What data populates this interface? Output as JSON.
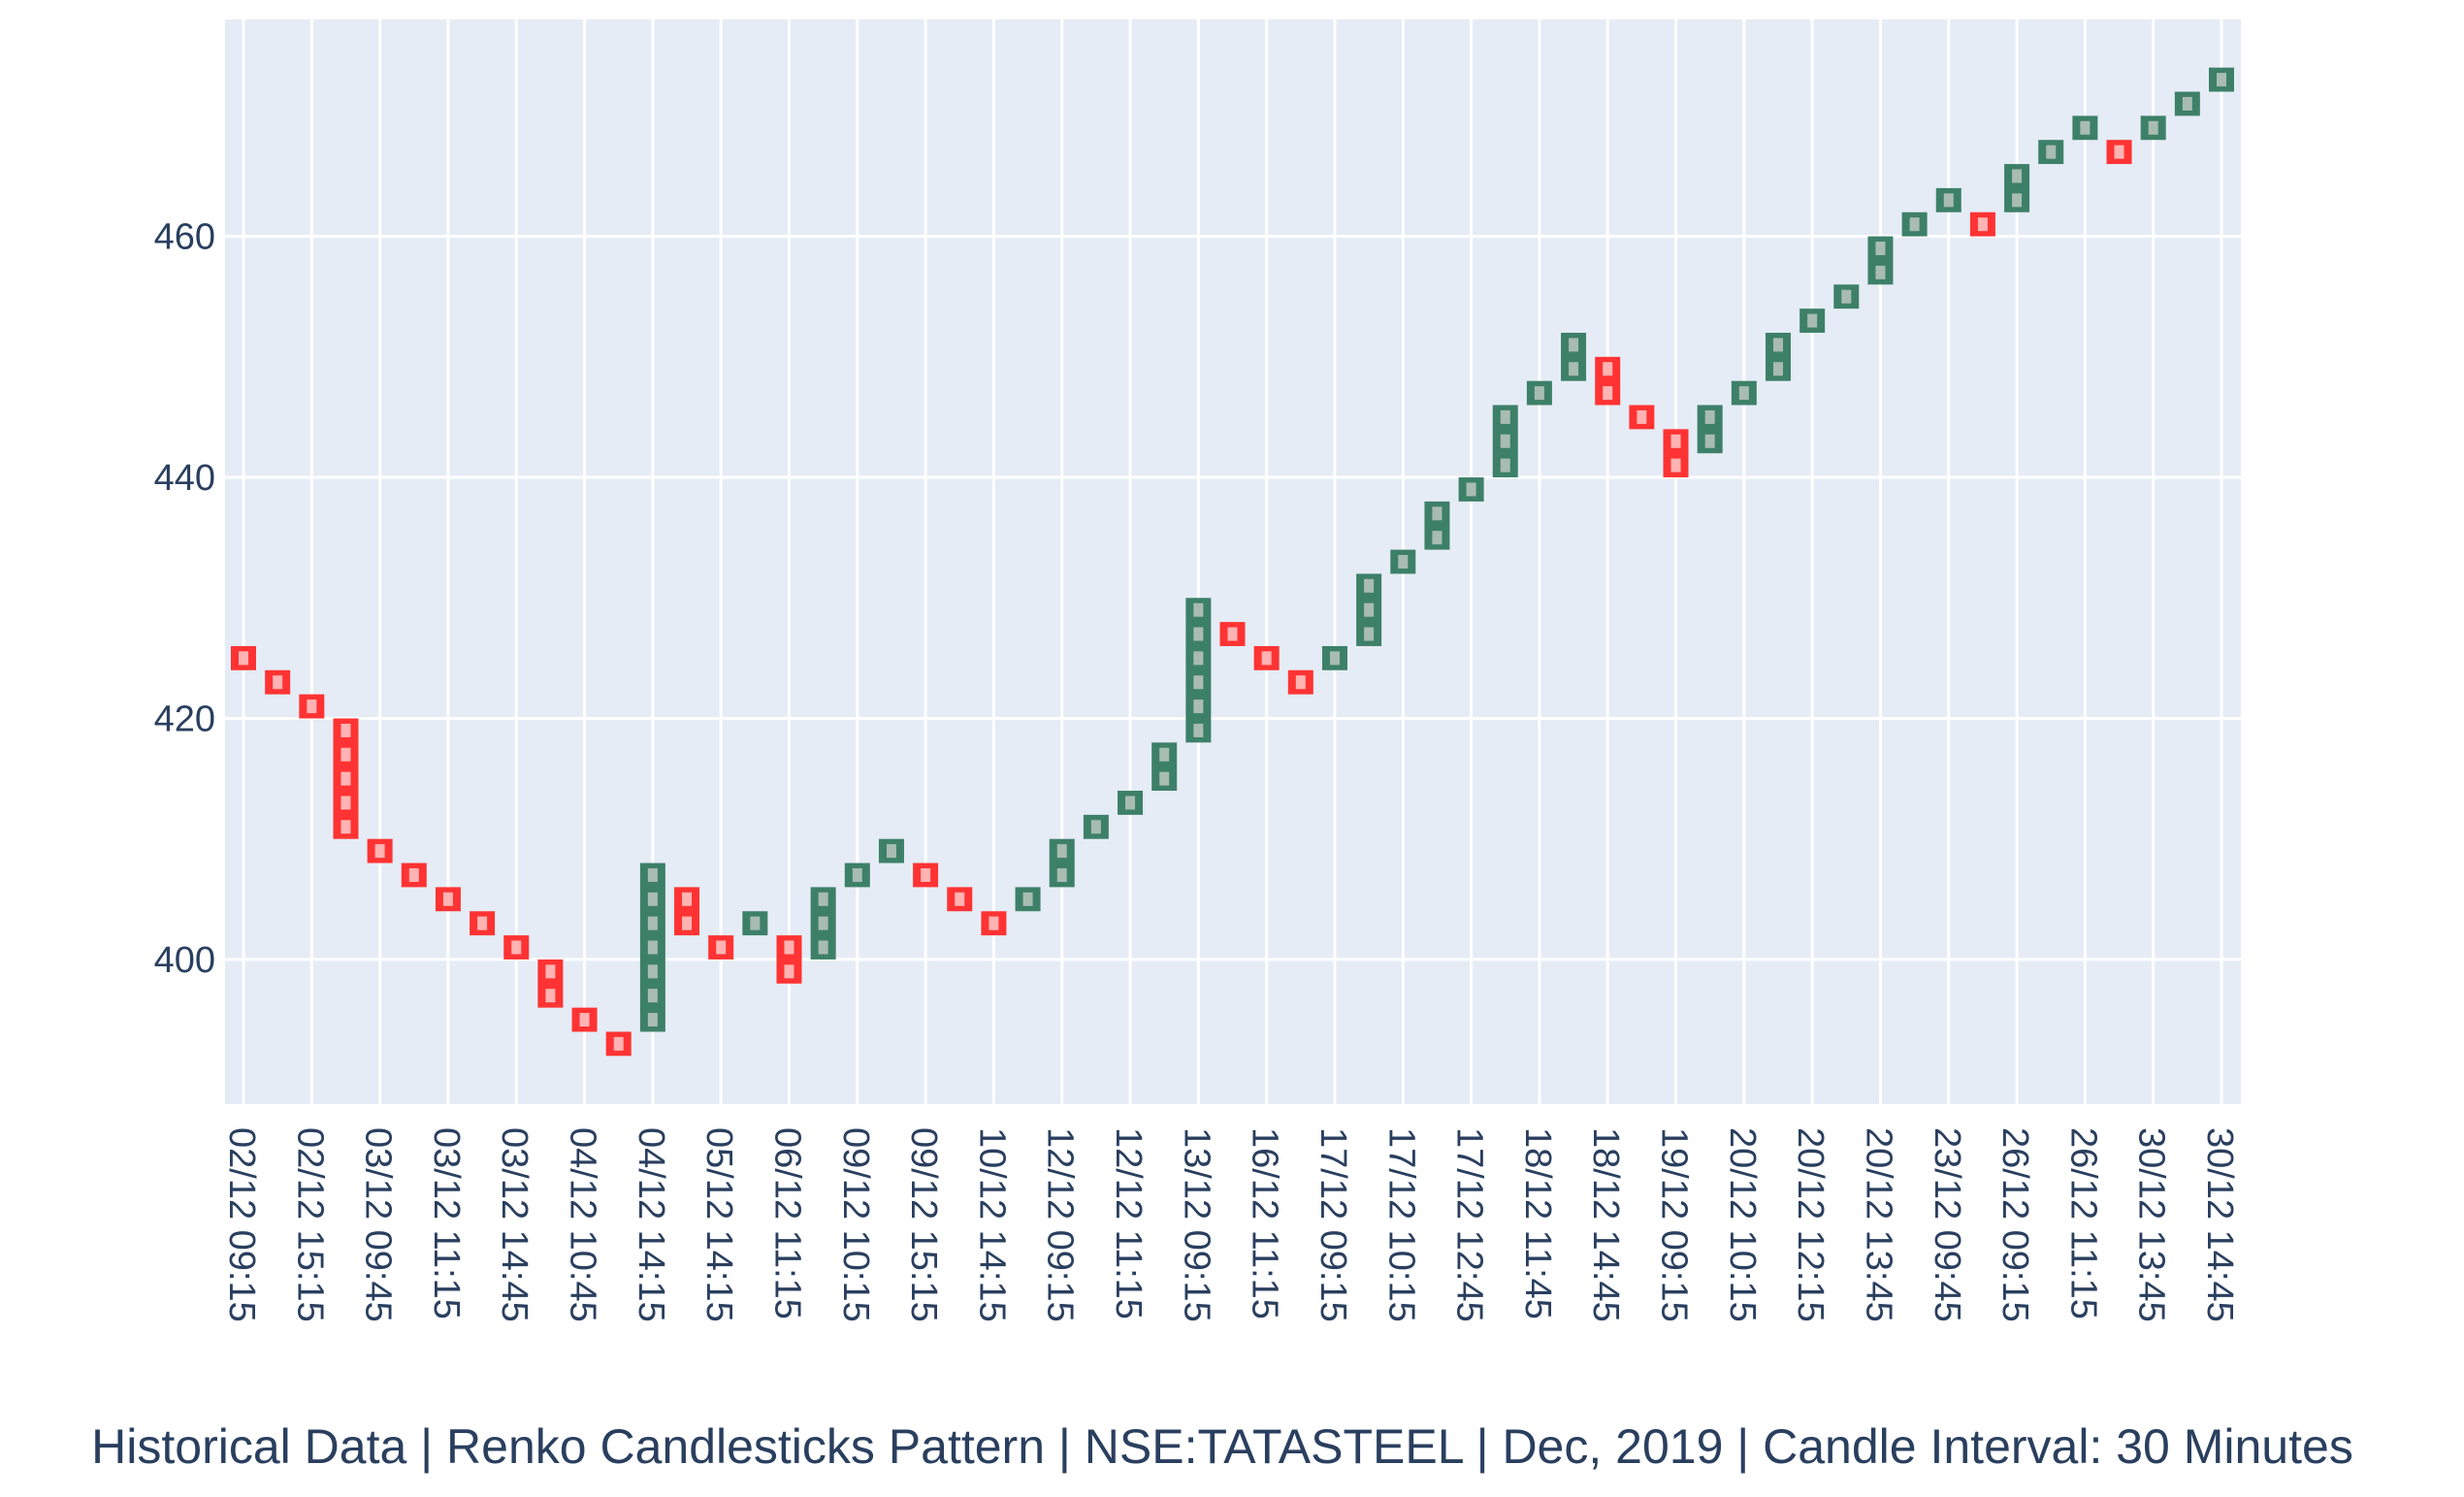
{
  "caption": "Historical Data | Renko Candlesticks Pattern | NSE:TATASTEEL | Dec, 2019 | Candle Interval: 30 Minutes",
  "chart_data": {
    "type": "renko",
    "brick_size": 2,
    "ylim": [
      388,
      478
    ],
    "yticks": [
      400,
      420,
      440,
      460
    ],
    "grid": true,
    "colors": {
      "up": "#3d8068",
      "down": "#ff3333",
      "plot_bg": "#e5ecf6",
      "grid": "#ffffff",
      "text": "#2a3f5f"
    },
    "xtick_labels": [
      "02/12 09:15",
      "02/12 15:15",
      "03/12 09:45",
      "03/12 11:15",
      "03/12 14:45",
      "04/12 10:45",
      "04/12 14:15",
      "05/12 14:15",
      "06/12 11:15",
      "09/12 10:15",
      "09/12 15:15",
      "10/12 14:15",
      "12/12 09:15",
      "12/12 11:15",
      "13/12 09:15",
      "16/12 11:15",
      "17/12 09:15",
      "17/12 10:15",
      "17/12 12:45",
      "18/12 11:45",
      "18/12 14:45",
      "19/12 09:15",
      "20/12 10:15",
      "20/12 12:15",
      "20/12 13:45",
      "23/12 09:45",
      "26/12 09:15",
      "26/12 11:15",
      "30/12 13:45",
      "30/12 14:45"
    ],
    "candles": [
      {
        "open": 426,
        "close": 424
      },
      {
        "open": 424,
        "close": 422
      },
      {
        "open": 422,
        "close": 420
      },
      {
        "open": 420,
        "close": 410
      },
      {
        "open": 410,
        "close": 408
      },
      {
        "open": 408,
        "close": 406
      },
      {
        "open": 406,
        "close": 404
      },
      {
        "open": 404,
        "close": 402
      },
      {
        "open": 402,
        "close": 400
      },
      {
        "open": 400,
        "close": 396
      },
      {
        "open": 396,
        "close": 394
      },
      {
        "open": 394,
        "close": 392
      },
      {
        "open": 394,
        "close": 408
      },
      {
        "open": 406,
        "close": 402
      },
      {
        "open": 402,
        "close": 400
      },
      {
        "open": 402,
        "close": 404
      },
      {
        "open": 402,
        "close": 398
      },
      {
        "open": 400,
        "close": 406
      },
      {
        "open": 406,
        "close": 408
      },
      {
        "open": 408,
        "close": 410
      },
      {
        "open": 408,
        "close": 406
      },
      {
        "open": 406,
        "close": 404
      },
      {
        "open": 404,
        "close": 402
      },
      {
        "open": 404,
        "close": 406
      },
      {
        "open": 406,
        "close": 410
      },
      {
        "open": 410,
        "close": 412
      },
      {
        "open": 412,
        "close": 414
      },
      {
        "open": 414,
        "close": 418
      },
      {
        "open": 418,
        "close": 430
      },
      {
        "open": 428,
        "close": 426
      },
      {
        "open": 426,
        "close": 424
      },
      {
        "open": 424,
        "close": 422
      },
      {
        "open": 424,
        "close": 426
      },
      {
        "open": 426,
        "close": 432
      },
      {
        "open": 432,
        "close": 434
      },
      {
        "open": 434,
        "close": 438
      },
      {
        "open": 438,
        "close": 440
      },
      {
        "open": 440,
        "close": 446
      },
      {
        "open": 446,
        "close": 448
      },
      {
        "open": 448,
        "close": 452
      },
      {
        "open": 450,
        "close": 446
      },
      {
        "open": 446,
        "close": 444
      },
      {
        "open": 444,
        "close": 440
      },
      {
        "open": 442,
        "close": 446
      },
      {
        "open": 446,
        "close": 448
      },
      {
        "open": 448,
        "close": 452
      },
      {
        "open": 452,
        "close": 454
      },
      {
        "open": 454,
        "close": 456
      },
      {
        "open": 456,
        "close": 460
      },
      {
        "open": 460,
        "close": 462
      },
      {
        "open": 462,
        "close": 464
      },
      {
        "open": 462,
        "close": 460
      },
      {
        "open": 462,
        "close": 466
      },
      {
        "open": 466,
        "close": 468
      },
      {
        "open": 468,
        "close": 470
      },
      {
        "open": 468,
        "close": 466
      },
      {
        "open": 468,
        "close": 470
      },
      {
        "open": 470,
        "close": 472
      },
      {
        "open": 472,
        "close": 474
      }
    ]
  }
}
